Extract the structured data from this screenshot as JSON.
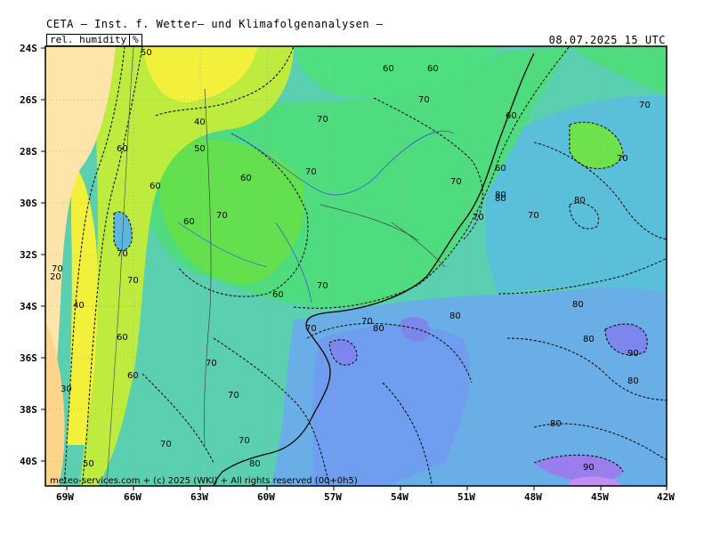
{
  "header": {
    "title": "CETA — Inst. f. Wetter— und Klimafolgenanalysen —",
    "variable": "rel. humidity",
    "unit": "%",
    "datetime": "08.07.2025 15 UTC"
  },
  "axes": {
    "lat_labels": [
      "24S",
      "26S",
      "28S",
      "30S",
      "32S",
      "34S",
      "36S",
      "38S",
      "40S"
    ],
    "lon_labels": [
      "69W",
      "66W",
      "63W",
      "60W",
      "57W",
      "54W",
      "51W",
      "48W",
      "45W",
      "42W"
    ]
  },
  "contour_labels": [
    "50",
    "40",
    "50",
    "60",
    "70",
    "60",
    "70",
    "70",
    "60",
    "70",
    "60",
    "60",
    "70",
    "70",
    "80",
    "70",
    "70",
    "80",
    "70",
    "60",
    "70",
    "60",
    "70",
    "70",
    "80",
    "60",
    "70",
    "30",
    "50",
    "70",
    "70",
    "80",
    "80",
    "80",
    "80",
    "90",
    "80",
    "80",
    "90",
    "20",
    "70",
    "40",
    "60",
    "60",
    "70",
    "60",
    "70",
    "80",
    "70"
  ],
  "copyright": "meteo-services.com + (c) 2025 (WKI) + All rights reserved (00+0h5)",
  "colors": {
    "dry_orange": "#fde4a8",
    "yellow": "#f4f23a",
    "yellow_green": "#c4ec3f",
    "green": "#6fe34a",
    "sea_green": "#46de84",
    "teal": "#5ad4bd",
    "cyan_blue": "#5ab8e0",
    "blue": "#6f9ef0",
    "violet": "#8c80ee"
  }
}
